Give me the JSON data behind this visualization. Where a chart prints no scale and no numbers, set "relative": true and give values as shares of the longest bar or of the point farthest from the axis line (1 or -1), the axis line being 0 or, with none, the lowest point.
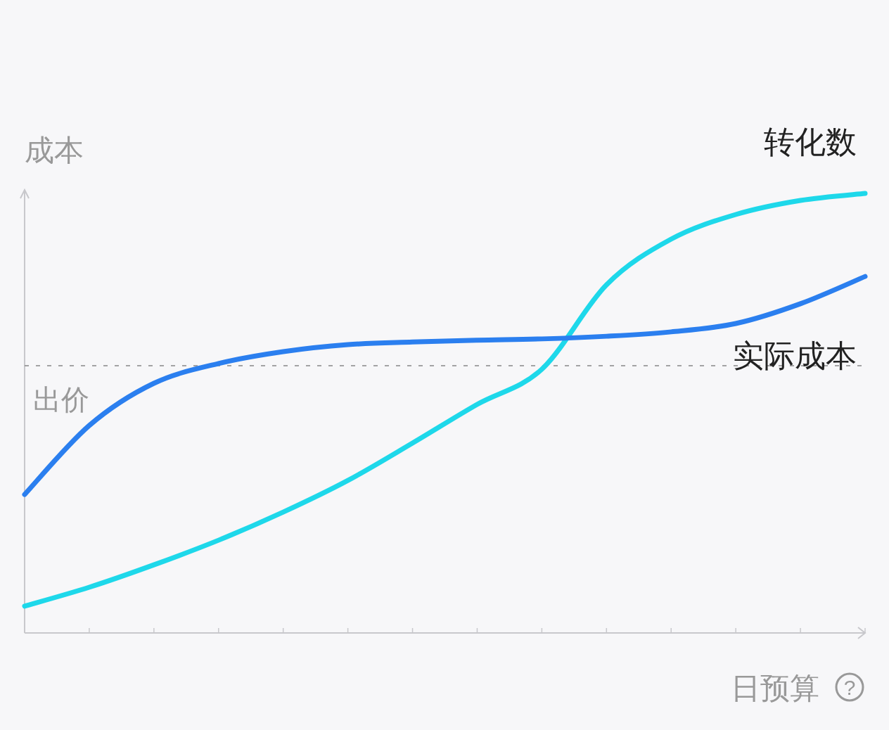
{
  "chart_data": {
    "type": "line",
    "relative": true,
    "xlabel": "日预算",
    "ylabel": "成本",
    "annotations": [
      "?"
    ],
    "categories": [
      null,
      null,
      null,
      null,
      null,
      null,
      null,
      null,
      null,
      null,
      null,
      null,
      null,
      null
    ],
    "series": [
      {
        "name": "转化数",
        "color": "#1ed8ea",
        "values": [
          0.061,
          0.104,
          0.155,
          0.211,
          0.275,
          0.347,
          0.432,
          0.52,
          0.6,
          0.792,
          0.896,
          0.952,
          0.984,
          1
        ]
      },
      {
        "name": "实际成本",
        "color": "#2b7fef",
        "values": [
          0.315,
          0.472,
          0.568,
          0.613,
          0.64,
          0.656,
          0.662,
          0.666,
          0.669,
          0.675,
          0.685,
          0.704,
          0.749,
          0.811
        ]
      }
    ],
    "ref_lines": [
      {
        "axis": "y",
        "value": 0.608,
        "label": "出价",
        "color": "#888888",
        "line_style": "dashed"
      }
    ]
  }
}
